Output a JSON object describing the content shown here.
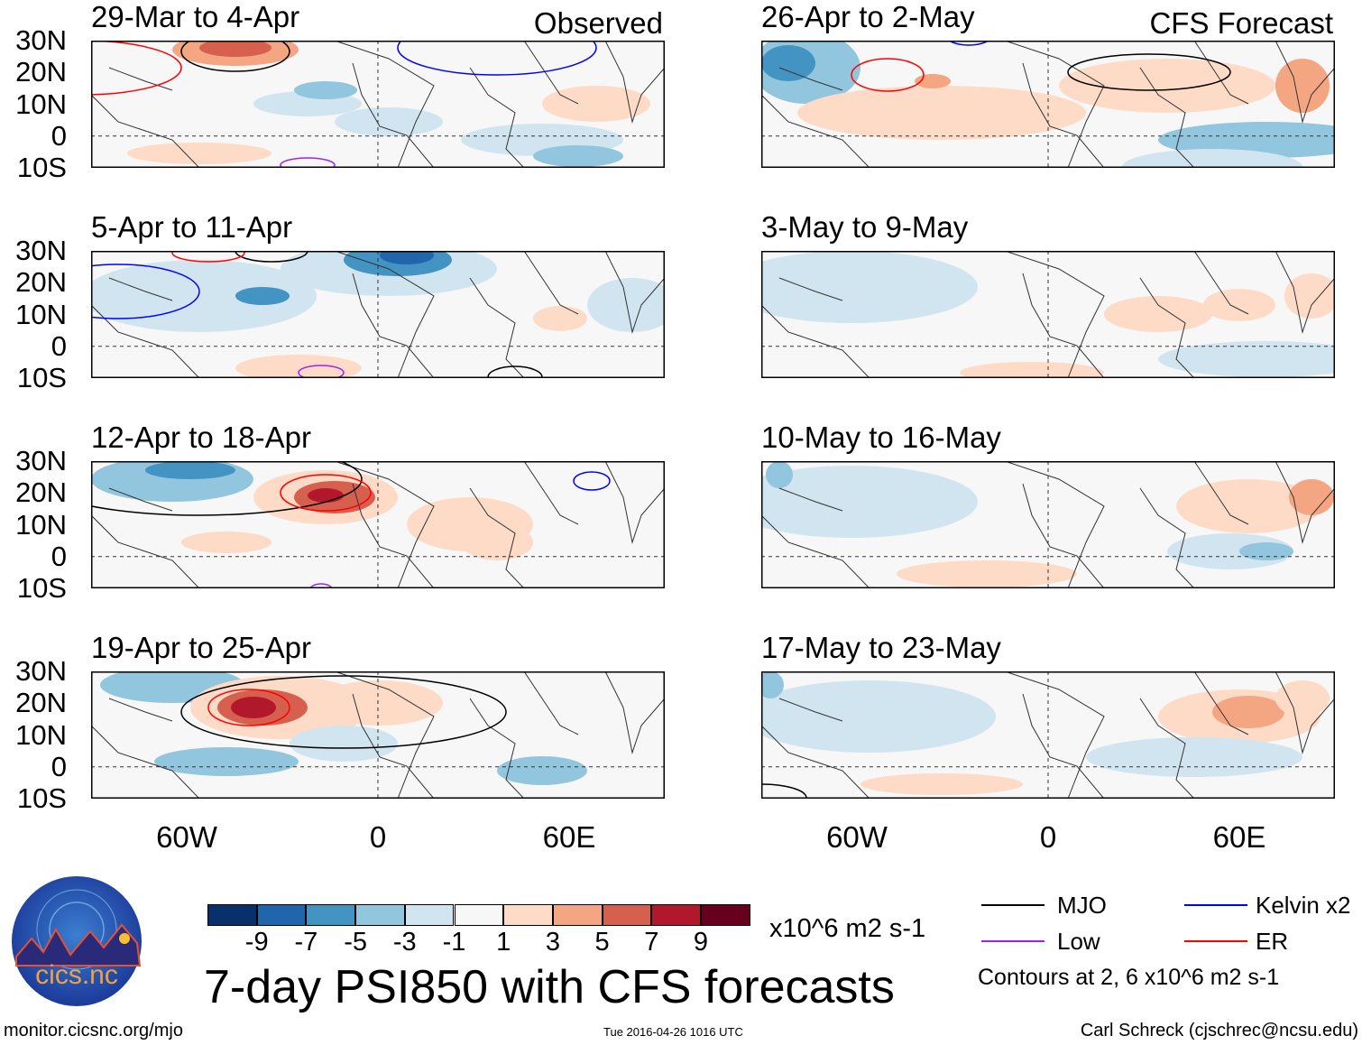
{
  "panels": [
    {
      "title": "29-Mar to 4-Apr",
      "label": "Observed"
    },
    {
      "title": "26-Apr to 2-May",
      "label": "CFS Forecast"
    },
    {
      "title": "5-Apr to 11-Apr"
    },
    {
      "title": "3-May to 9-May"
    },
    {
      "title": "12-Apr to 18-Apr"
    },
    {
      "title": "10-May to 16-May"
    },
    {
      "title": "19-Apr to 25-Apr"
    },
    {
      "title": "17-May to 23-May"
    }
  ],
  "lat_labels": [
    "30N",
    "20N",
    "10N",
    "0",
    "10S"
  ],
  "lon_labels": [
    "60W",
    "0",
    "60E"
  ],
  "colorbar": {
    "colors": [
      "#08306b",
      "#2166ac",
      "#4393c3",
      "#92c5de",
      "#d1e5f0",
      "#f7f7f7",
      "#fddbc7",
      "#f4a582",
      "#d6604d",
      "#b2182b",
      "#67001f"
    ],
    "ticks": [
      "-9",
      "-7",
      "-5",
      "-3",
      "-1",
      "1",
      "3",
      "5",
      "7",
      "9"
    ],
    "units": "x10^6 m2 s-1"
  },
  "title": "7-day PSI850 with CFS forecasts",
  "legend": {
    "items": [
      {
        "label": "MJO",
        "color": "#000000"
      },
      {
        "label": "Kelvin x2",
        "color": "#0000ff"
      },
      {
        "label": "Low",
        "color": "#a020f0"
      },
      {
        "label": "ER",
        "color": "#ff0000"
      }
    ],
    "note": "Contours at 2, 6 x10^6 m2 s-1"
  },
  "logo": {
    "text": "cics.nc",
    "ring_text": "Cooperative Institute for Climate and Satellites"
  },
  "footer": {
    "url": "monitor.cicsnc.org/mjo",
    "timestamp": "Tue 2016-04-26 1016 UTC",
    "author": "Carl Schreck (cjschrec@ncsu.edu)"
  }
}
